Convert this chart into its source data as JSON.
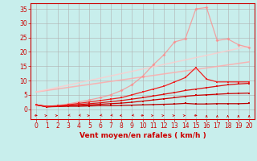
{
  "background_color": "#c8eeec",
  "grid_color": "#b0b0b0",
  "xlabel": "Vent moyen/en rafales ( km/h )",
  "xlim": [
    -0.5,
    20.5
  ],
  "ylim": [
    -3.5,
    37
  ],
  "yticks": [
    0,
    5,
    10,
    15,
    20,
    25,
    30,
    35
  ],
  "xticks": [
    0,
    1,
    2,
    3,
    4,
    5,
    6,
    7,
    8,
    9,
    10,
    11,
    12,
    13,
    14,
    15,
    16,
    17,
    18,
    19,
    20
  ],
  "lines": [
    {
      "x": [
        0,
        1,
        2,
        3,
        4,
        5,
        6,
        7,
        8,
        9,
        10,
        11,
        12,
        13,
        14,
        15,
        16,
        17,
        18,
        19,
        20
      ],
      "y": [
        1.5,
        0.8,
        0.9,
        1.0,
        1.0,
        1.1,
        1.2,
        1.2,
        1.3,
        1.4,
        1.5,
        1.6,
        1.7,
        1.8,
        2.0,
        1.8,
        1.8,
        1.9,
        1.9,
        1.9,
        2.0
      ],
      "color": "#bb0000",
      "lw": 0.9,
      "marker": "s",
      "ms": 2.0,
      "alpha": 1.0,
      "zorder": 5
    },
    {
      "x": [
        0,
        1,
        2,
        3,
        4,
        5,
        6,
        7,
        8,
        9,
        10,
        11,
        12,
        13,
        14,
        15,
        16,
        17,
        18,
        19,
        20
      ],
      "y": [
        1.5,
        0.8,
        1.0,
        1.2,
        1.3,
        1.5,
        1.7,
        1.9,
        2.1,
        2.4,
        2.8,
        3.2,
        3.6,
        4.0,
        4.5,
        4.8,
        5.0,
        5.2,
        5.4,
        5.5,
        5.6
      ],
      "color": "#cc0000",
      "lw": 0.9,
      "marker": "s",
      "ms": 2.0,
      "alpha": 1.0,
      "zorder": 5
    },
    {
      "x": [
        0,
        1,
        2,
        3,
        4,
        5,
        6,
        7,
        8,
        9,
        10,
        11,
        12,
        13,
        14,
        15,
        16,
        17,
        18,
        19,
        20
      ],
      "y": [
        1.5,
        0.9,
        1.1,
        1.4,
        1.6,
        1.9,
        2.2,
        2.6,
        3.0,
        3.5,
        4.0,
        4.6,
        5.2,
        5.8,
        6.5,
        7.0,
        7.5,
        8.0,
        8.5,
        8.8,
        9.0
      ],
      "color": "#dd1111",
      "lw": 0.9,
      "marker": "s",
      "ms": 2.0,
      "alpha": 1.0,
      "zorder": 5
    },
    {
      "x": [
        0,
        1,
        2,
        3,
        4,
        5,
        6,
        7,
        8,
        9,
        10,
        11,
        12,
        13,
        14,
        15,
        16,
        17,
        18,
        19,
        20
      ],
      "y": [
        1.5,
        1.0,
        1.2,
        1.5,
        2.0,
        2.5,
        3.0,
        3.5,
        4.0,
        5.0,
        6.0,
        7.0,
        8.0,
        9.5,
        11.0,
        14.5,
        10.5,
        9.5,
        9.5,
        9.5,
        9.5
      ],
      "color": "#ee2222",
      "lw": 0.9,
      "marker": "s",
      "ms": 2.0,
      "alpha": 1.0,
      "zorder": 5
    },
    {
      "x": [
        0,
        20
      ],
      "y": [
        6.0,
        16.5
      ],
      "color": "#ffaaaa",
      "lw": 1.1,
      "marker": null,
      "ms": 0,
      "alpha": 0.85,
      "zorder": 2
    },
    {
      "x": [
        0,
        20
      ],
      "y": [
        6.0,
        22.0
      ],
      "color": "#ffcccc",
      "lw": 1.1,
      "marker": null,
      "ms": 0,
      "alpha": 0.8,
      "zorder": 2
    },
    {
      "x": [
        0,
        1,
        2,
        3,
        4,
        5,
        6,
        7,
        8,
        9,
        10,
        11,
        12,
        13,
        14,
        15,
        16,
        17,
        18,
        19,
        20
      ],
      "y": [
        1.5,
        1.0,
        1.2,
        1.8,
        2.5,
        3.2,
        4.0,
        5.0,
        6.5,
        8.5,
        11.5,
        15.5,
        19.0,
        23.5,
        24.5,
        35.0,
        35.5,
        24.0,
        24.5,
        22.5,
        21.5
      ],
      "color": "#ff8888",
      "lw": 0.9,
      "marker": "D",
      "ms": 2.0,
      "alpha": 0.75,
      "zorder": 3
    }
  ],
  "wind_arrows": {
    "x": [
      0,
      1,
      2,
      3,
      4,
      5,
      6,
      7,
      8,
      9,
      10,
      11,
      12,
      13,
      14,
      15,
      16,
      17,
      18,
      19,
      20
    ],
    "angles": [
      90,
      45,
      45,
      225,
      225,
      45,
      225,
      225,
      210,
      225,
      90,
      45,
      45,
      45,
      45,
      90,
      0,
      0,
      0,
      0,
      0
    ],
    "color": "#cc0000"
  },
  "axis_color": "#cc0000",
  "tick_color": "#cc0000",
  "label_color": "#cc0000",
  "tick_fontsize": 5.5,
  "label_fontsize": 6.5
}
